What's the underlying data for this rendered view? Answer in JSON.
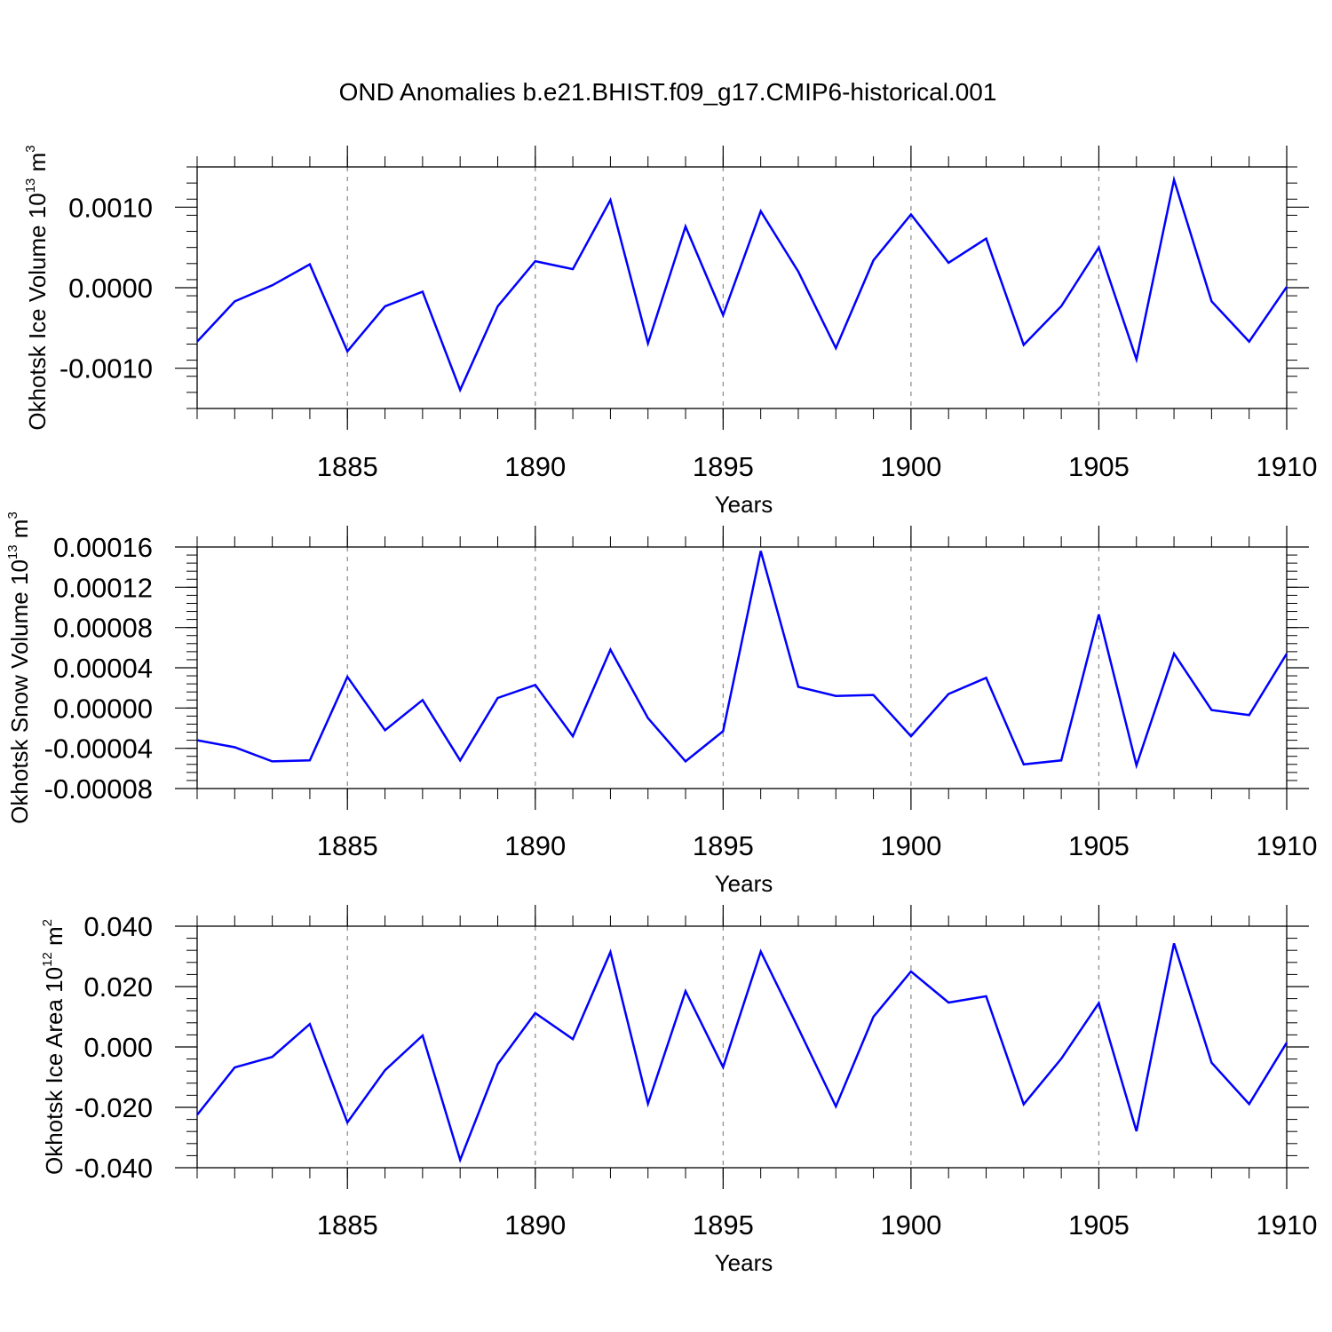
{
  "title": "OND Anomalies b.e21.BHIST.f09_g17.CMIP6-historical.001",
  "colors": {
    "line": "#0000ff",
    "axis": "#000000",
    "grid": "#888888"
  },
  "chart_data": [
    {
      "type": "line",
      "name": "ice-volume",
      "ylabel": "Okhotsk Ice Volume 10",
      "ylabel_exp": "13",
      "ylabel_unit": " m",
      "ylabel_unit_exp": "3",
      "xlabel": "Years",
      "xlim": [
        1881,
        1910
      ],
      "ylim": [
        -0.0015,
        0.0015
      ],
      "x_ticks": [
        1885,
        1890,
        1895,
        1900,
        1905,
        1910
      ],
      "x_tick_labels": [
        "1885",
        "1890",
        "1895",
        "1900",
        "1905",
        "1910"
      ],
      "y_ticks": [
        -0.001,
        0.0,
        0.001
      ],
      "y_tick_labels": [
        "-0.0010",
        "0.0000",
        "0.0010"
      ],
      "x": [
        1881,
        1882,
        1883,
        1884,
        1885,
        1886,
        1887,
        1888,
        1889,
        1890,
        1891,
        1892,
        1893,
        1894,
        1895,
        1896,
        1897,
        1898,
        1899,
        1900,
        1901,
        1902,
        1903,
        1904,
        1905,
        1906,
        1907,
        1908,
        1909,
        1910
      ],
      "values": [
        -0.00067,
        -0.00017,
        3e-05,
        0.00029,
        -0.00079,
        -0.00023,
        -5e-05,
        -0.00127,
        -0.00023,
        0.00033,
        0.00023,
        0.00109,
        -0.00069,
        0.00076,
        -0.00034,
        0.00095,
        0.0002,
        -0.00075,
        0.00034,
        0.00091,
        0.00031,
        0.00061,
        -0.00071,
        -0.00023,
        0.0005,
        -0.00089,
        0.00134,
        -0.00017,
        -0.00067,
        1e-05
      ]
    },
    {
      "type": "line",
      "name": "snow-volume",
      "ylabel": "Okhotsk Snow Volume 10",
      "ylabel_exp": "13",
      "ylabel_unit": " m",
      "ylabel_unit_exp": "3",
      "xlabel": "Years",
      "xlim": [
        1881,
        1910
      ],
      "ylim": [
        -8e-05,
        0.00016
      ],
      "x_ticks": [
        1885,
        1890,
        1895,
        1900,
        1905,
        1910
      ],
      "x_tick_labels": [
        "1885",
        "1890",
        "1895",
        "1900",
        "1905",
        "1910"
      ],
      "y_ticks": [
        -8e-05,
        -4e-05,
        0.0,
        4e-05,
        8e-05,
        0.00012,
        0.00016
      ],
      "y_tick_labels": [
        "-0.00008",
        "-0.00004",
        "0.00000",
        "0.00004",
        "0.00008",
        "0.00012",
        "0.00016"
      ],
      "x": [
        1881,
        1882,
        1883,
        1884,
        1885,
        1886,
        1887,
        1888,
        1889,
        1890,
        1891,
        1892,
        1893,
        1894,
        1895,
        1896,
        1897,
        1898,
        1899,
        1900,
        1901,
        1902,
        1903,
        1904,
        1905,
        1906,
        1907,
        1908,
        1909,
        1910
      ],
      "values": [
        -3.2e-05,
        -3.9e-05,
        -5.3e-05,
        -5.2e-05,
        3.1e-05,
        -2.2e-05,
        8e-06,
        -5.2e-05,
        1e-05,
        2.3e-05,
        -2.8e-05,
        5.8e-05,
        -1e-05,
        -5.3e-05,
        -2.3e-05,
        0.000156,
        2.1e-05,
        1.2e-05,
        1.3e-05,
        -2.8e-05,
        1.4e-05,
        3e-05,
        -5.6e-05,
        -5.2e-05,
        9.3e-05,
        -5.7e-05,
        5.4e-05,
        -2e-06,
        -7e-06,
        5.4e-05
      ]
    },
    {
      "type": "line",
      "name": "ice-area",
      "ylabel": "Okhotsk Ice Area 10",
      "ylabel_exp": "12",
      "ylabel_unit": " m",
      "ylabel_unit_exp": "2",
      "xlabel": "Years",
      "xlim": [
        1881,
        1910
      ],
      "ylim": [
        -0.04,
        0.04
      ],
      "x_ticks": [
        1885,
        1890,
        1895,
        1900,
        1905,
        1910
      ],
      "x_tick_labels": [
        "1885",
        "1890",
        "1895",
        "1900",
        "1905",
        "1910"
      ],
      "y_ticks": [
        -0.04,
        -0.02,
        0.0,
        0.02,
        0.04
      ],
      "y_tick_labels": [
        "-0.040",
        "-0.020",
        "0.000",
        "0.020",
        "0.040"
      ],
      "x": [
        1881,
        1882,
        1883,
        1884,
        1885,
        1886,
        1887,
        1888,
        1889,
        1890,
        1891,
        1892,
        1893,
        1894,
        1895,
        1896,
        1897,
        1898,
        1899,
        1900,
        1901,
        1902,
        1903,
        1904,
        1905,
        1906,
        1907,
        1908,
        1909,
        1910
      ],
      "values": [
        -0.0225,
        -0.0068,
        -0.0033,
        0.0076,
        -0.025,
        -0.0077,
        0.0038,
        -0.0374,
        -0.0057,
        0.0112,
        0.0026,
        0.0314,
        -0.0188,
        0.0185,
        -0.0067,
        0.0316,
        0.0062,
        -0.0197,
        0.01,
        0.025,
        0.0147,
        0.0168,
        -0.019,
        -0.0039,
        0.0145,
        -0.0279,
        0.0343,
        -0.0052,
        -0.0189,
        0.0014
      ]
    }
  ]
}
